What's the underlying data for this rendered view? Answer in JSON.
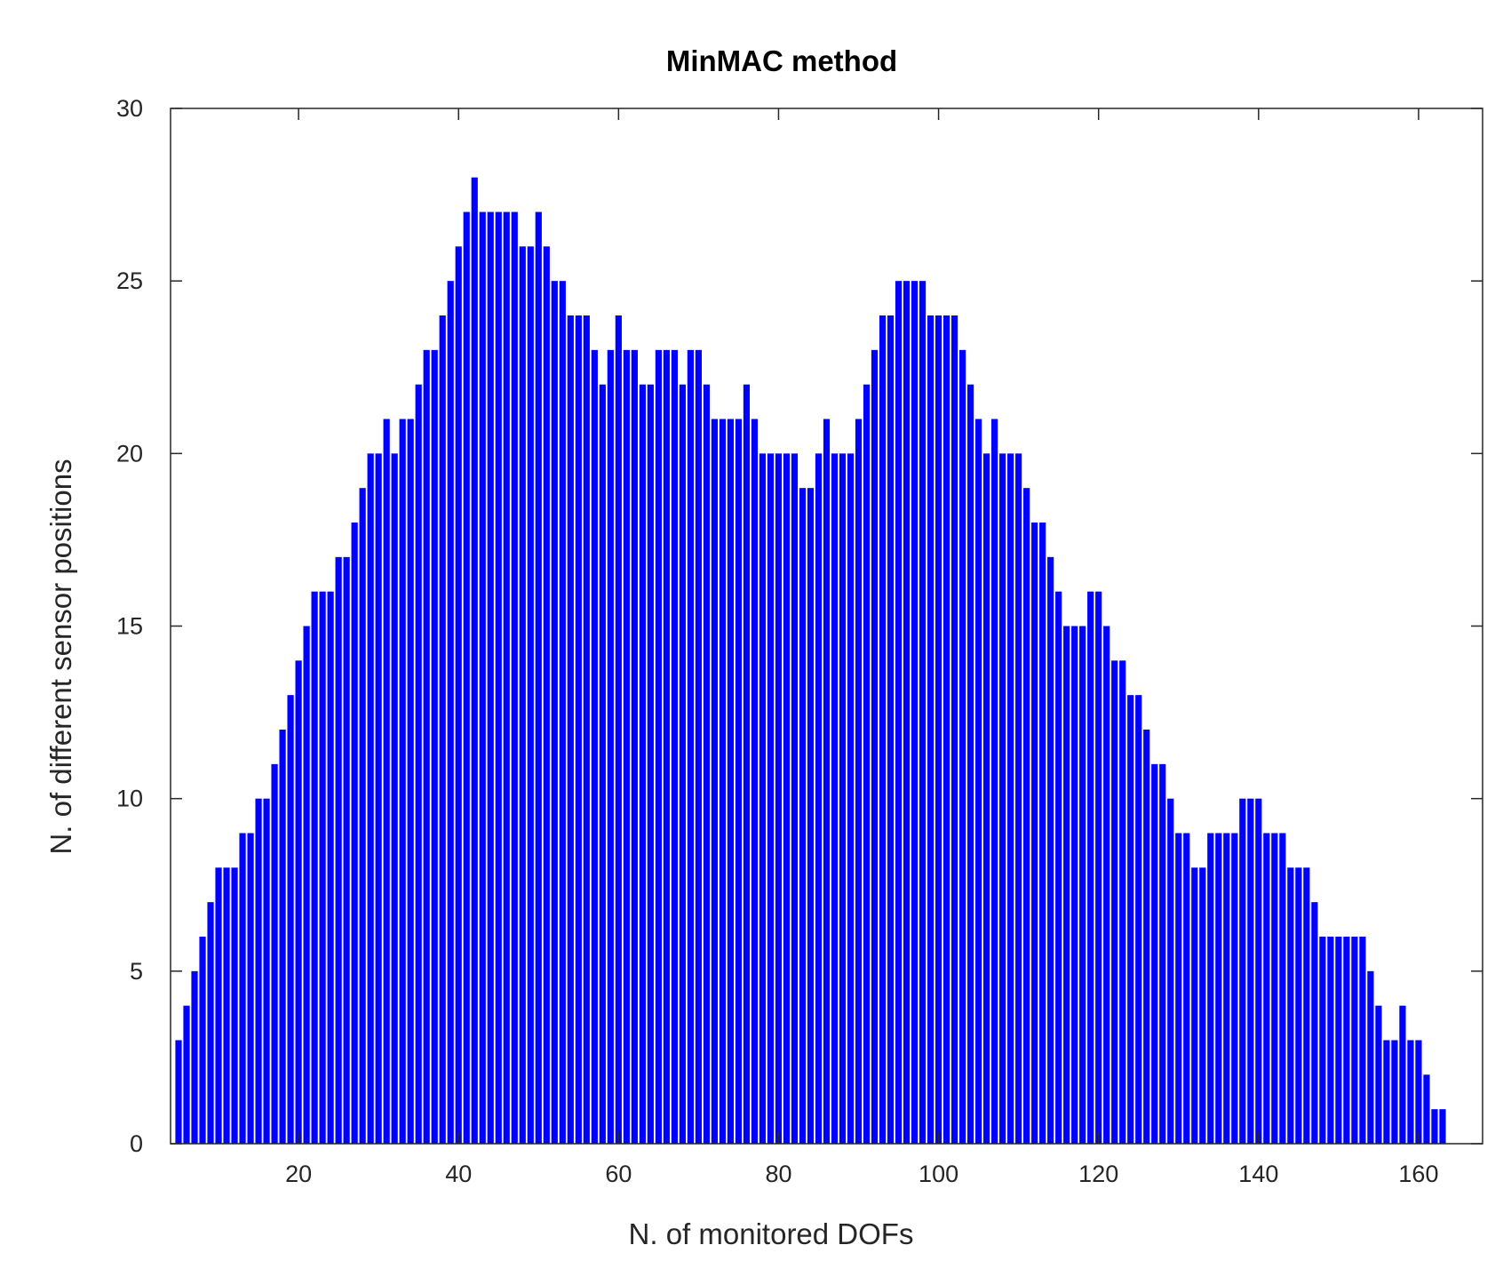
{
  "chart_data": {
    "type": "bar",
    "title": "MinMAC method",
    "xlabel": "N. of monitored DOFs",
    "ylabel": "N. of different sensor positions",
    "xlim": [
      4,
      168
    ],
    "ylim": [
      0,
      30
    ],
    "xticks": [
      20,
      40,
      60,
      80,
      100,
      120,
      140,
      160
    ],
    "yticks": [
      0,
      5,
      10,
      15,
      20,
      25,
      30
    ],
    "grid": false,
    "bar_color": "#0000ff",
    "x_start": 5,
    "values": [
      3,
      4,
      5,
      6,
      7,
      8,
      8,
      8,
      9,
      9,
      10,
      10,
      11,
      12,
      13,
      14,
      15,
      16,
      16,
      16,
      17,
      17,
      18,
      19,
      20,
      20,
      21,
      20,
      21,
      21,
      22,
      23,
      23,
      24,
      25,
      26,
      27,
      28,
      27,
      27,
      27,
      27,
      27,
      26,
      26,
      27,
      26,
      25,
      25,
      24,
      24,
      24,
      23,
      22,
      23,
      24,
      23,
      23,
      22,
      22,
      23,
      23,
      23,
      22,
      23,
      23,
      22,
      21,
      21,
      21,
      21,
      22,
      21,
      20,
      20,
      20,
      20,
      20,
      19,
      19,
      20,
      21,
      20,
      20,
      20,
      21,
      22,
      23,
      24,
      24,
      25,
      25,
      25,
      25,
      24,
      24,
      24,
      24,
      23,
      22,
      21,
      20,
      21,
      20,
      20,
      20,
      19,
      18,
      18,
      17,
      16,
      15,
      15,
      15,
      16,
      16,
      15,
      14,
      14,
      13,
      13,
      12,
      11,
      11,
      10,
      9,
      9,
      8,
      8,
      9,
      9,
      9,
      9,
      10,
      10,
      10,
      9,
      9,
      9,
      8,
      8,
      8,
      7,
      6,
      6,
      6,
      6,
      6,
      6,
      5,
      4,
      3,
      3,
      4,
      3,
      3,
      2,
      1,
      1
    ]
  }
}
